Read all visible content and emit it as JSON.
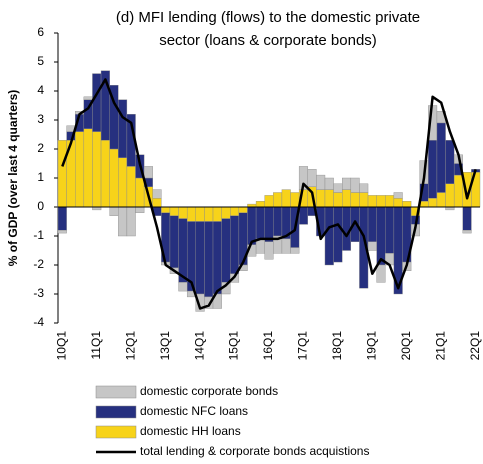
{
  "chart_data": {
    "type": "bar",
    "title": [
      "(d) MFI lending (flows) to the domestic private",
      "sector (loans & corporate bonds)"
    ],
    "y_label": "% of GDP (over last 4 quarters)",
    "stacked": true,
    "categories": [
      "10Q1",
      null,
      null,
      null,
      "11Q1",
      null,
      null,
      null,
      "12Q1",
      null,
      null,
      null,
      "13Q1",
      null,
      null,
      null,
      "14Q1",
      null,
      null,
      null,
      "15Q1",
      null,
      null,
      null,
      "16Q1",
      null,
      null,
      null,
      "17Q1",
      null,
      null,
      null,
      "18Q1",
      null,
      null,
      null,
      "19Q1",
      null,
      null,
      null,
      "20Q1",
      null,
      null,
      null,
      "21Q1",
      null,
      null,
      null,
      "22Q1"
    ],
    "series": [
      {
        "name": "domestic corporate bonds",
        "type": "bar",
        "color": "#c6c6c6",
        "values": [
          -0.1,
          0.2,
          0.1,
          0.1,
          -0.1,
          0.0,
          -0.3,
          -1.0,
          -1.0,
          -0.2,
          0.4,
          0.3,
          -0.1,
          -0.2,
          -0.3,
          -0.2,
          -0.6,
          -0.4,
          -0.5,
          -0.4,
          -0.3,
          -0.2,
          -0.4,
          -0.5,
          -0.6,
          -0.6,
          -0.5,
          -0.2,
          0.8,
          0.6,
          0.5,
          0.4,
          0.3,
          0.4,
          0.5,
          0.3,
          -0.3,
          -0.6,
          -0.4,
          0.2,
          -0.3,
          -0.4,
          0.8,
          1.2,
          0.4,
          -0.1,
          0.3,
          -0.1,
          0.0
        ]
      },
      {
        "name": "domestic NFC loans",
        "type": "bar",
        "color": "#26307f",
        "values": [
          -0.8,
          0.3,
          0.6,
          1.0,
          2.0,
          2.4,
          2.2,
          2.0,
          1.8,
          0.8,
          0.3,
          -0.3,
          -1.7,
          -1.8,
          -2.2,
          -2.4,
          -2.5,
          -2.6,
          -2.5,
          -2.2,
          -2.0,
          -1.8,
          -1.3,
          -1.1,
          -1.2,
          -1.0,
          -1.1,
          -1.4,
          -0.6,
          -0.3,
          -1.0,
          -2.0,
          -1.9,
          -1.5,
          -1.2,
          -2.8,
          -1.2,
          -2.0,
          -1.6,
          -3.0,
          -1.9,
          -0.3,
          0.6,
          2.0,
          2.4,
          1.5,
          0.4,
          -0.8,
          0.1
        ]
      },
      {
        "name": "domestic HH loans",
        "type": "bar",
        "color": "#f7d31a",
        "values": [
          2.3,
          2.3,
          2.6,
          2.7,
          2.6,
          2.3,
          2.0,
          1.7,
          1.4,
          1.0,
          0.7,
          0.3,
          -0.2,
          -0.3,
          -0.4,
          -0.5,
          -0.5,
          -0.5,
          -0.5,
          -0.4,
          -0.3,
          -0.2,
          0.1,
          0.2,
          0.4,
          0.5,
          0.6,
          0.5,
          0.6,
          0.7,
          0.6,
          0.6,
          0.5,
          0.6,
          0.5,
          0.5,
          0.4,
          0.4,
          0.4,
          0.3,
          0.2,
          -0.3,
          0.2,
          0.3,
          0.5,
          0.8,
          1.1,
          1.2,
          1.2
        ]
      },
      {
        "name": "total lending & corporate bonds acquistions",
        "type": "line",
        "color": "#000000",
        "values": [
          1.4,
          2.2,
          3.2,
          3.4,
          3.9,
          4.4,
          3.6,
          3.1,
          2.9,
          1.5,
          0.4,
          -0.7,
          -2.0,
          -2.2,
          -2.4,
          -2.6,
          -3.5,
          -3.4,
          -2.9,
          -2.7,
          -2.4,
          -1.9,
          -1.2,
          -1.1,
          -1.1,
          -1.1,
          -1.0,
          -0.8,
          0.8,
          0.5,
          -1.1,
          -0.7,
          -0.6,
          -1.0,
          -0.5,
          -1.0,
          -2.3,
          -1.8,
          -2.0,
          -2.8,
          -2.0,
          -0.7,
          1.0,
          3.8,
          3.6,
          2.6,
          1.8,
          0.3,
          1.3
        ]
      }
    ],
    "ylim": [
      -4,
      6
    ],
    "yticks": [
      -4,
      -3,
      -2,
      -1,
      0,
      1,
      2,
      3,
      4,
      5,
      6
    ],
    "legend": "bottom"
  }
}
